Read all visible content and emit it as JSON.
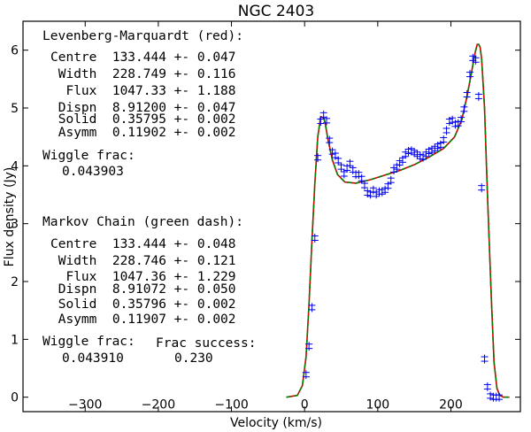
{
  "chart_data": {
    "type": "line",
    "title": "NGC 2403",
    "xlabel": "Velocity (km/s)",
    "ylabel": "Flux density (Jy)",
    "xlim": [
      -385,
      295
    ],
    "ylim": [
      -0.25,
      6.5
    ],
    "xticks": [
      "−300",
      "−200",
      "−100",
      "0",
      "100",
      "200"
    ],
    "yticks": [
      "0",
      "1",
      "2",
      "3",
      "4",
      "5",
      "6"
    ],
    "grid": false,
    "colors": {
      "fit_red": "#cc0000",
      "fit_green": "#008000",
      "points": "#0000ee"
    },
    "model": {
      "name": "Levenberg-Marquardt (red) / Markov Chain (green dash)",
      "x": [
        -25,
        -10,
        -3,
        2,
        6,
        10,
        14,
        18,
        22,
        26,
        28,
        32,
        38,
        45,
        55,
        70,
        90,
        110,
        130,
        150,
        170,
        190,
        205,
        215,
        222,
        228,
        233,
        236,
        238,
        240,
        242,
        246,
        250,
        255,
        259,
        263,
        267,
        272,
        280
      ],
      "y": [
        0.0,
        0.03,
        0.2,
        0.7,
        1.6,
        2.7,
        3.7,
        4.5,
        4.85,
        4.83,
        4.75,
        4.45,
        4.1,
        3.85,
        3.72,
        3.7,
        3.76,
        3.84,
        3.92,
        4.02,
        4.15,
        4.3,
        4.5,
        4.8,
        5.2,
        5.6,
        5.95,
        6.1,
        6.1,
        6.05,
        5.85,
        5.0,
        3.5,
        1.8,
        0.6,
        0.15,
        0.03,
        0.0,
        0.0
      ]
    },
    "series": [
      {
        "x": [
          2,
          6,
          10,
          14,
          18,
          22,
          26,
          30,
          34,
          38,
          42,
          46,
          50,
          54,
          58,
          62,
          66,
          70,
          74,
          78,
          82,
          86,
          90,
          94,
          98,
          102,
          106,
          110,
          114,
          118,
          122,
          126,
          130,
          134,
          138,
          142,
          146,
          150,
          154,
          158,
          162,
          166,
          170,
          174,
          178,
          182,
          186,
          190,
          194,
          198,
          202,
          206,
          210,
          214,
          218,
          222,
          226,
          230,
          234,
          238,
          242,
          246,
          250,
          254,
          258,
          262,
          266
        ],
        "y": [
          0.39,
          0.88,
          1.55,
          2.75,
          4.14,
          4.77,
          4.88,
          4.78,
          4.44,
          4.24,
          4.18,
          4.09,
          3.98,
          3.86,
          3.96,
          4.04,
          3.93,
          3.85,
          3.85,
          3.78,
          3.66,
          3.53,
          3.51,
          3.58,
          3.51,
          3.55,
          3.55,
          3.58,
          3.65,
          3.75,
          3.93,
          3.98,
          4.05,
          4.1,
          4.2,
          4.25,
          4.26,
          4.23,
          4.2,
          4.16,
          4.15,
          4.2,
          4.25,
          4.27,
          4.3,
          4.34,
          4.36,
          4.45,
          4.61,
          4.77,
          4.79,
          4.72,
          4.73,
          4.8,
          4.98,
          5.23,
          5.58,
          5.86,
          5.83,
          5.2,
          3.62,
          0.66,
          0.18,
          0.02,
          0.0,
          0.0,
          0.0
        ]
      }
    ],
    "annotations": {
      "lm_header": "Levenberg-Marquardt (red):",
      "lm_rows": [
        "Centre  133.444 +- 0.047",
        " Width  228.749 +- 0.116",
        "  Flux  1047.33 +- 1.188",
        " Dispn  8.91200 +- 0.047",
        " Solid  0.35795 +- 0.002",
        " Asymm  0.11902 +- 0.002"
      ],
      "lm_wiggle_label": "Wiggle frac:",
      "lm_wiggle_value": "0.043903",
      "mc_header": "Markov Chain (green dash):",
      "mc_rows": [
        "Centre  133.444 +- 0.048",
        " Width  228.746 +- 0.121",
        "  Flux  1047.36 +- 1.229",
        " Dispn  8.91072 +- 0.050",
        " Solid  0.35796 +- 0.002",
        " Asymm  0.11907 +- 0.002"
      ],
      "mc_wiggle_label": "Wiggle frac:",
      "mc_wiggle_value": "0.043910",
      "success_label": "Frac success:",
      "success_value": "0.230"
    }
  }
}
